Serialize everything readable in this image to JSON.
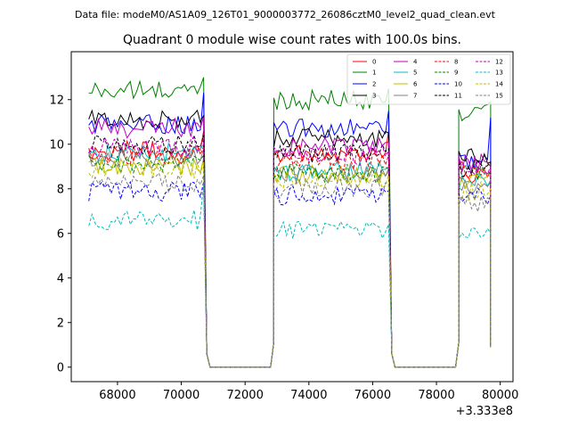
{
  "chart_data": {
    "type": "line",
    "suptitle": "Data file: modeM0/AS1A09_126T01_9000003772_26086cztM0_level2_quad_clean.evt",
    "title": "Quadrant 0 module wise count rates with 100.0s bins.",
    "xlabel": "",
    "ylabel": "",
    "x_offset_label": "+3.333e8",
    "xlim": [
      66550,
      80400
    ],
    "ylim": [
      -0.65,
      14.15
    ],
    "xticks": [
      68000,
      70000,
      72000,
      74000,
      76000,
      78000,
      80000
    ],
    "xtick_labels": [
      "68000",
      "70000",
      "72000",
      "74000",
      "76000",
      "78000",
      "80000"
    ],
    "yticks": [
      0,
      2,
      4,
      6,
      8,
      10,
      12
    ],
    "ytick_labels": [
      "0",
      "2",
      "4",
      "6",
      "8",
      "10",
      "12"
    ],
    "legend_position": "upper-right",
    "segments": [
      {
        "start": 67100,
        "end": 70700,
        "drop_to": 70900
      },
      {
        "start": 72900,
        "end": 76500,
        "drop_to": 76700
      },
      {
        "start": 78700,
        "end": 79700,
        "drop_to": 79700
      }
    ],
    "zero_gaps": [
      [
        70900,
        72800
      ],
      [
        76700,
        78600
      ]
    ],
    "series": [
      {
        "name": "0",
        "color": "#ff0000",
        "dash": false,
        "segment_levels": [
          9.7,
          9.6,
          8.6
        ],
        "edge_values": [
          10.6,
          10.6,
          8.8
        ]
      },
      {
        "name": "1",
        "color": "#008000",
        "dash": false,
        "segment_levels": [
          12.4,
          12.0,
          11.5
        ],
        "edge_values": [
          13.0,
          12.5,
          11.9
        ]
      },
      {
        "name": "2",
        "color": "#0000ff",
        "dash": false,
        "segment_levels": [
          10.9,
          10.7,
          9.3
        ],
        "edge_values": [
          12.3,
          11.5,
          11.2
        ]
      },
      {
        "name": "3",
        "color": "#000000",
        "dash": false,
        "segment_levels": [
          11.1,
          10.3,
          9.4
        ],
        "edge_values": [
          11.3,
          10.5,
          9.2
        ]
      },
      {
        "name": "4",
        "color": "#bf00bf",
        "dash": false,
        "segment_levels": [
          10.7,
          9.9,
          9.1
        ],
        "edge_values": [
          11.2,
          10.1,
          9.0
        ]
      },
      {
        "name": "5",
        "color": "#00bfbf",
        "dash": false,
        "segment_levels": [
          9.6,
          8.8,
          8.3
        ],
        "edge_values": [
          10.0,
          9.0,
          8.4
        ]
      },
      {
        "name": "6",
        "color": "#bfbf00",
        "dash": false,
        "segment_levels": [
          9.0,
          8.6,
          8.4
        ],
        "edge_values": [
          9.4,
          8.8,
          8.6
        ]
      },
      {
        "name": "7",
        "color": "#808080",
        "dash": false,
        "segment_levels": [
          9.4,
          8.7,
          8.2
        ],
        "edge_values": [
          9.8,
          8.9,
          8.3
        ]
      },
      {
        "name": "8",
        "color": "#ff0000",
        "dash": true,
        "segment_levels": [
          9.5,
          9.3,
          8.9
        ],
        "edge_values": [
          9.9,
          9.5,
          9.0
        ]
      },
      {
        "name": "9",
        "color": "#008000",
        "dash": true,
        "segment_levels": [
          9.1,
          8.7,
          8.7
        ],
        "edge_values": [
          9.5,
          8.9,
          8.8
        ]
      },
      {
        "name": "10",
        "color": "#0000ff",
        "dash": true,
        "segment_levels": [
          7.9,
          7.7,
          7.6
        ],
        "edge_values": [
          8.3,
          7.9,
          7.7
        ]
      },
      {
        "name": "11",
        "color": "#000000",
        "dash": true,
        "segment_levels": [
          10.0,
          9.6,
          9.0
        ],
        "edge_values": [
          10.4,
          9.8,
          9.2
        ]
      },
      {
        "name": "12",
        "color": "#bf00bf",
        "dash": true,
        "segment_levels": [
          9.9,
          9.5,
          8.9
        ],
        "edge_values": [
          10.2,
          9.7,
          9.0
        ]
      },
      {
        "name": "13",
        "color": "#00bfbf",
        "dash": true,
        "segment_levels": [
          6.6,
          6.2,
          6.1
        ],
        "edge_values": [
          8.2,
          6.4,
          6.0
        ]
      },
      {
        "name": "14",
        "color": "#bfbf00",
        "dash": true,
        "segment_levels": [
          8.9,
          8.4,
          7.9
        ],
        "edge_values": [
          9.2,
          8.6,
          8.0
        ]
      },
      {
        "name": "15",
        "color": "#808080",
        "dash": true,
        "segment_levels": [
          8.3,
          8.0,
          7.4
        ],
        "edge_values": [
          8.6,
          8.2,
          7.5
        ]
      }
    ],
    "final_value": 0.9
  }
}
